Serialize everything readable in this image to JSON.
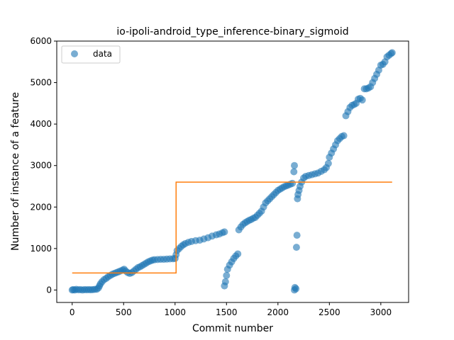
{
  "chart_data": {
    "type": "scatter",
    "title": "io-ipoli-android_type_inference-binary_sigmoid",
    "xlabel": "Commit number",
    "ylabel": "Number of instance of a feature",
    "xlim": [
      -150,
      3270
    ],
    "ylim": [
      -300,
      6000
    ],
    "xticks": [
      0,
      500,
      1000,
      1500,
      2000,
      2500,
      3000
    ],
    "yticks": [
      0,
      1000,
      2000,
      3000,
      4000,
      5000,
      6000
    ],
    "grid": false,
    "legend": {
      "placement": "top-left",
      "entries": [
        "data"
      ]
    },
    "colors": {
      "data": "#1f77b4",
      "fit": "#ff7f0e"
    },
    "series": [
      {
        "name": "data",
        "style": "markers",
        "points": [
          [
            0,
            0
          ],
          [
            10,
            10
          ],
          [
            25,
            0
          ],
          [
            40,
            15
          ],
          [
            60,
            5
          ],
          [
            80,
            10
          ],
          [
            100,
            0
          ],
          [
            120,
            10
          ],
          [
            140,
            5
          ],
          [
            160,
            10
          ],
          [
            180,
            5
          ],
          [
            200,
            10
          ],
          [
            220,
            15
          ],
          [
            240,
            20
          ],
          [
            255,
            50
          ],
          [
            265,
            100
          ],
          [
            275,
            150
          ],
          [
            290,
            200
          ],
          [
            310,
            250
          ],
          [
            330,
            280
          ],
          [
            350,
            320
          ],
          [
            370,
            350
          ],
          [
            390,
            380
          ],
          [
            410,
            400
          ],
          [
            430,
            420
          ],
          [
            450,
            440
          ],
          [
            470,
            460
          ],
          [
            490,
            480
          ],
          [
            505,
            500
          ],
          [
            520,
            460
          ],
          [
            540,
            420
          ],
          [
            560,
            400
          ],
          [
            580,
            420
          ],
          [
            600,
            460
          ],
          [
            620,
            500
          ],
          [
            640,
            540
          ],
          [
            660,
            560
          ],
          [
            680,
            590
          ],
          [
            700,
            620
          ],
          [
            720,
            650
          ],
          [
            740,
            680
          ],
          [
            760,
            700
          ],
          [
            780,
            720
          ],
          [
            800,
            730
          ],
          [
            830,
            735
          ],
          [
            860,
            740
          ],
          [
            890,
            740
          ],
          [
            920,
            745
          ],
          [
            950,
            750
          ],
          [
            980,
            755
          ],
          [
            1000,
            760
          ],
          [
            1010,
            850
          ],
          [
            1020,
            950
          ],
          [
            1040,
            1000
          ],
          [
            1060,
            1050
          ],
          [
            1080,
            1090
          ],
          [
            1100,
            1120
          ],
          [
            1130,
            1150
          ],
          [
            1160,
            1170
          ],
          [
            1200,
            1190
          ],
          [
            1240,
            1200
          ],
          [
            1280,
            1230
          ],
          [
            1320,
            1260
          ],
          [
            1360,
            1300
          ],
          [
            1400,
            1330
          ],
          [
            1430,
            1350
          ],
          [
            1460,
            1380
          ],
          [
            1480,
            1400
          ],
          [
            1480,
            100
          ],
          [
            1490,
            200
          ],
          [
            1500,
            350
          ],
          [
            1510,
            500
          ],
          [
            1530,
            600
          ],
          [
            1550,
            680
          ],
          [
            1570,
            760
          ],
          [
            1590,
            820
          ],
          [
            1610,
            870
          ],
          [
            1620,
            1450
          ],
          [
            1640,
            1520
          ],
          [
            1660,
            1580
          ],
          [
            1680,
            1620
          ],
          [
            1700,
            1650
          ],
          [
            1720,
            1680
          ],
          [
            1740,
            1700
          ],
          [
            1760,
            1730
          ],
          [
            1780,
            1750
          ],
          [
            1800,
            1800
          ],
          [
            1820,
            1850
          ],
          [
            1840,
            1900
          ],
          [
            1860,
            2000
          ],
          [
            1880,
            2100
          ],
          [
            1900,
            2150
          ],
          [
            1920,
            2200
          ],
          [
            1940,
            2250
          ],
          [
            1960,
            2300
          ],
          [
            1980,
            2350
          ],
          [
            2000,
            2400
          ],
          [
            2020,
            2430
          ],
          [
            2040,
            2460
          ],
          [
            2060,
            2490
          ],
          [
            2080,
            2510
          ],
          [
            2100,
            2530
          ],
          [
            2120,
            2550
          ],
          [
            2140,
            2570
          ],
          [
            2155,
            2850
          ],
          [
            2160,
            3000
          ],
          [
            2160,
            0
          ],
          [
            2165,
            60
          ],
          [
            2175,
            30
          ],
          [
            2180,
            1030
          ],
          [
            2185,
            1320
          ],
          [
            2190,
            2200
          ],
          [
            2195,
            2300
          ],
          [
            2205,
            2400
          ],
          [
            2215,
            2500
          ],
          [
            2230,
            2600
          ],
          [
            2250,
            2700
          ],
          [
            2270,
            2740
          ],
          [
            2300,
            2760
          ],
          [
            2330,
            2780
          ],
          [
            2360,
            2800
          ],
          [
            2390,
            2820
          ],
          [
            2420,
            2860
          ],
          [
            2450,
            2900
          ],
          [
            2470,
            2950
          ],
          [
            2490,
            3050
          ],
          [
            2500,
            3200
          ],
          [
            2520,
            3300
          ],
          [
            2540,
            3400
          ],
          [
            2560,
            3500
          ],
          [
            2580,
            3600
          ],
          [
            2600,
            3650
          ],
          [
            2620,
            3700
          ],
          [
            2640,
            3720
          ],
          [
            2660,
            4200
          ],
          [
            2680,
            4300
          ],
          [
            2700,
            4400
          ],
          [
            2720,
            4450
          ],
          [
            2740,
            4470
          ],
          [
            2760,
            4500
          ],
          [
            2780,
            4600
          ],
          [
            2800,
            4620
          ],
          [
            2820,
            4580
          ],
          [
            2840,
            4850
          ],
          [
            2860,
            4850
          ],
          [
            2880,
            4870
          ],
          [
            2900,
            4900
          ],
          [
            2920,
            5000
          ],
          [
            2940,
            5100
          ],
          [
            2960,
            5200
          ],
          [
            2980,
            5300
          ],
          [
            3000,
            5420
          ],
          [
            3020,
            5440
          ],
          [
            3040,
            5500
          ],
          [
            3060,
            5620
          ],
          [
            3080,
            5660
          ],
          [
            3100,
            5700
          ],
          [
            3110,
            5720
          ]
        ]
      },
      {
        "name": "",
        "style": "step-line",
        "points": [
          [
            0,
            410
          ],
          [
            1010,
            410
          ],
          [
            1010,
            2600
          ],
          [
            3110,
            2600
          ]
        ]
      }
    ]
  }
}
